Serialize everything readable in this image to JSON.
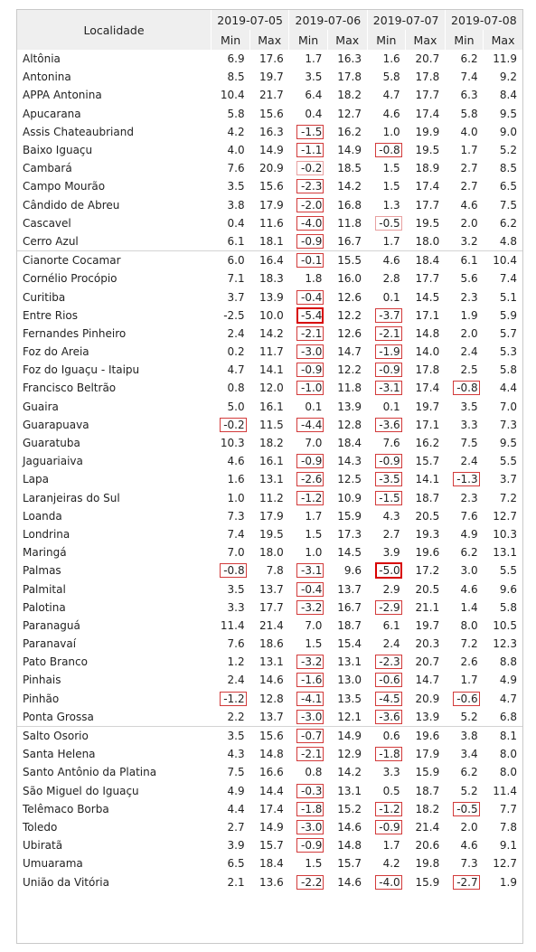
{
  "table": {
    "header": {
      "locality_label": "Localidade",
      "dates": [
        "2019-07-05",
        "2019-07-06",
        "2019-07-07",
        "2019-07-08"
      ],
      "min_label": "Min",
      "max_label": "Max"
    },
    "rows": [
      {
        "name": "Altônia",
        "vals": [
          "6.9",
          "17.6",
          "1.7",
          "16.3",
          "1.6",
          "20.7",
          "6.2",
          "11.9"
        ],
        "marks": [
          "",
          "",
          "",
          "",
          "",
          "",
          "",
          ""
        ]
      },
      {
        "name": "Antonina",
        "vals": [
          "8.5",
          "19.7",
          "3.5",
          "17.8",
          "5.8",
          "17.8",
          "7.4",
          "9.2"
        ],
        "marks": [
          "",
          "",
          "",
          "",
          "",
          "",
          "",
          ""
        ]
      },
      {
        "name": "APPA Antonina",
        "vals": [
          "10.4",
          "21.7",
          "6.4",
          "18.2",
          "4.7",
          "17.7",
          "6.3",
          "8.4"
        ],
        "marks": [
          "",
          "",
          "",
          "",
          "",
          "",
          "",
          ""
        ]
      },
      {
        "name": "Apucarana",
        "vals": [
          "5.8",
          "15.6",
          "0.4",
          "12.7",
          "4.6",
          "17.4",
          "5.8",
          "9.5"
        ],
        "marks": [
          "",
          "",
          "",
          "",
          "",
          "",
          "",
          ""
        ]
      },
      {
        "name": "Assis Chateaubriand",
        "vals": [
          "4.2",
          "16.3",
          "-1.5",
          "16.2",
          "1.0",
          "19.9",
          "4.0",
          "9.0"
        ],
        "marks": [
          "",
          "",
          "m",
          "",
          "",
          "",
          "",
          ""
        ]
      },
      {
        "name": "Baixo Iguaçu",
        "vals": [
          "4.0",
          "14.9",
          "-1.1",
          "14.9",
          "-0.8",
          "19.5",
          "1.7",
          "5.2"
        ],
        "marks": [
          "",
          "",
          "m",
          "",
          "m",
          "",
          "",
          ""
        ]
      },
      {
        "name": "Cambará",
        "vals": [
          "7.6",
          "20.9",
          "-0.2",
          "18.5",
          "1.5",
          "18.9",
          "2.7",
          "8.5"
        ],
        "marks": [
          "",
          "",
          "l",
          "",
          "",
          "",
          "",
          ""
        ]
      },
      {
        "name": "Campo Mourão",
        "vals": [
          "3.5",
          "15.6",
          "-2.3",
          "14.2",
          "1.5",
          "17.4",
          "2.7",
          "6.5"
        ],
        "marks": [
          "",
          "",
          "m",
          "",
          "",
          "",
          "",
          ""
        ]
      },
      {
        "name": "Cândido de Abreu",
        "vals": [
          "3.8",
          "17.9",
          "-2.0",
          "16.8",
          "1.3",
          "17.7",
          "4.6",
          "7.5"
        ],
        "marks": [
          "",
          "",
          "m",
          "",
          "",
          "",
          "",
          ""
        ]
      },
      {
        "name": "Cascavel",
        "vals": [
          "0.4",
          "11.6",
          "-4.0",
          "11.8",
          "-0.5",
          "19.5",
          "2.0",
          "6.2"
        ],
        "marks": [
          "",
          "",
          "m",
          "",
          "l",
          "",
          "",
          ""
        ]
      },
      {
        "name": "Cerro Azul",
        "vals": [
          "6.1",
          "18.1",
          "-0.9",
          "16.7",
          "1.7",
          "18.0",
          "3.2",
          "4.8"
        ],
        "marks": [
          "",
          "",
          "m",
          "",
          "",
          "",
          "",
          ""
        ]
      },
      {
        "name": "Cianorte Cocamar",
        "vals": [
          "6.0",
          "16.4",
          "-0.1",
          "15.5",
          "4.6",
          "18.4",
          "6.1",
          "10.4"
        ],
        "marks": [
          "",
          "",
          "m",
          "",
          "",
          "",
          "",
          ""
        ]
      },
      {
        "name": "Cornélio Procópio",
        "vals": [
          "7.1",
          "18.3",
          "1.8",
          "16.0",
          "2.8",
          "17.7",
          "5.6",
          "7.4"
        ],
        "marks": [
          "",
          "",
          "",
          "",
          "",
          "",
          "",
          ""
        ]
      },
      {
        "name": "Curitiba",
        "vals": [
          "3.7",
          "13.9",
          "-0.4",
          "12.6",
          "0.1",
          "14.5",
          "2.3",
          "5.1"
        ],
        "marks": [
          "",
          "",
          "m",
          "",
          "",
          "",
          "",
          ""
        ]
      },
      {
        "name": "Entre Rios",
        "vals": [
          "-2.5",
          "10.0",
          "-5.4",
          "12.2",
          "-3.7",
          "17.1",
          "1.9",
          "5.9"
        ],
        "marks": [
          "",
          "",
          "s",
          "",
          "m",
          "",
          "",
          ""
        ]
      },
      {
        "name": "Fernandes Pinheiro",
        "vals": [
          "2.4",
          "14.2",
          "-2.1",
          "12.6",
          "-2.1",
          "14.8",
          "2.0",
          "5.7"
        ],
        "marks": [
          "",
          "",
          "m",
          "",
          "m",
          "",
          "",
          ""
        ]
      },
      {
        "name": "Foz do Areia",
        "vals": [
          "0.2",
          "11.7",
          "-3.0",
          "14.7",
          "-1.9",
          "14.0",
          "2.4",
          "5.3"
        ],
        "marks": [
          "",
          "",
          "m",
          "",
          "m",
          "",
          "",
          ""
        ]
      },
      {
        "name": "Foz do Iguaçu - Itaipu",
        "vals": [
          "4.7",
          "14.1",
          "-0.9",
          "12.2",
          "-0.9",
          "17.8",
          "2.5",
          "5.8"
        ],
        "marks": [
          "",
          "",
          "m",
          "",
          "m",
          "",
          "",
          ""
        ]
      },
      {
        "name": "Francisco Beltrão",
        "vals": [
          "0.8",
          "12.0",
          "-1.0",
          "11.8",
          "-3.1",
          "17.4",
          "-0.8",
          "4.4"
        ],
        "marks": [
          "",
          "",
          "m",
          "",
          "m",
          "",
          "m",
          ""
        ]
      },
      {
        "name": "Guaira",
        "vals": [
          "5.0",
          "16.1",
          "0.1",
          "13.9",
          "0.1",
          "19.7",
          "3.5",
          "7.0"
        ],
        "marks": [
          "",
          "",
          "",
          "",
          "",
          "",
          "",
          ""
        ]
      },
      {
        "name": "Guarapuava",
        "vals": [
          "-0.2",
          "11.5",
          "-4.4",
          "12.8",
          "-3.6",
          "17.1",
          "3.3",
          "7.3"
        ],
        "marks": [
          "m",
          "",
          "m",
          "",
          "m",
          "",
          "",
          ""
        ]
      },
      {
        "name": "Guaratuba",
        "vals": [
          "10.3",
          "18.2",
          "7.0",
          "18.4",
          "7.6",
          "16.2",
          "7.5",
          "9.5"
        ],
        "marks": [
          "",
          "",
          "",
          "",
          "",
          "",
          "",
          ""
        ]
      },
      {
        "name": "Jaguariaiva",
        "vals": [
          "4.6",
          "16.1",
          "-0.9",
          "14.3",
          "-0.9",
          "15.7",
          "2.4",
          "5.5"
        ],
        "marks": [
          "",
          "",
          "m",
          "",
          "m",
          "",
          "",
          ""
        ]
      },
      {
        "name": "Lapa",
        "vals": [
          "1.6",
          "13.1",
          "-2.6",
          "12.5",
          "-3.5",
          "14.1",
          "-1.3",
          "3.7"
        ],
        "marks": [
          "",
          "",
          "m",
          "",
          "m",
          "",
          "m",
          ""
        ]
      },
      {
        "name": "Laranjeiras do Sul",
        "vals": [
          "1.0",
          "11.2",
          "-1.2",
          "10.9",
          "-1.5",
          "18.7",
          "2.3",
          "7.2"
        ],
        "marks": [
          "",
          "",
          "m",
          "",
          "m",
          "",
          "",
          ""
        ]
      },
      {
        "name": "Loanda",
        "vals": [
          "7.3",
          "17.9",
          "1.7",
          "15.9",
          "4.3",
          "20.5",
          "7.6",
          "12.7"
        ],
        "marks": [
          "",
          "",
          "",
          "",
          "",
          "",
          "",
          ""
        ]
      },
      {
        "name": "Londrina",
        "vals": [
          "7.4",
          "19.5",
          "1.5",
          "17.3",
          "2.7",
          "19.3",
          "4.9",
          "10.3"
        ],
        "marks": [
          "",
          "",
          "",
          "",
          "",
          "",
          "",
          ""
        ]
      },
      {
        "name": "Maringá",
        "vals": [
          "7.0",
          "18.0",
          "1.0",
          "14.5",
          "3.9",
          "19.6",
          "6.2",
          "13.1"
        ],
        "marks": [
          "",
          "",
          "",
          "",
          "",
          "",
          "",
          ""
        ]
      },
      {
        "name": "Palmas",
        "vals": [
          "-0.8",
          "7.8",
          "-3.1",
          "9.6",
          "-5.0",
          "17.2",
          "3.0",
          "5.5"
        ],
        "marks": [
          "m",
          "",
          "m",
          "",
          "s",
          "",
          "",
          ""
        ]
      },
      {
        "name": "Palmital",
        "vals": [
          "3.5",
          "13.7",
          "-0.4",
          "13.7",
          "2.9",
          "20.5",
          "4.6",
          "9.6"
        ],
        "marks": [
          "",
          "",
          "m",
          "",
          "",
          "",
          "",
          ""
        ]
      },
      {
        "name": "Palotina",
        "vals": [
          "3.3",
          "17.7",
          "-3.2",
          "16.7",
          "-2.9",
          "21.1",
          "1.4",
          "5.8"
        ],
        "marks": [
          "",
          "",
          "m",
          "",
          "m",
          "",
          "",
          ""
        ]
      },
      {
        "name": "Paranaguá",
        "vals": [
          "11.4",
          "21.4",
          "7.0",
          "18.7",
          "6.1",
          "19.7",
          "8.0",
          "10.5"
        ],
        "marks": [
          "",
          "",
          "",
          "",
          "",
          "",
          "",
          ""
        ]
      },
      {
        "name": "Paranavaí",
        "vals": [
          "7.6",
          "18.6",
          "1.5",
          "15.4",
          "2.4",
          "20.3",
          "7.2",
          "12.3"
        ],
        "marks": [
          "",
          "",
          "",
          "",
          "",
          "",
          "",
          ""
        ]
      },
      {
        "name": "Pato Branco",
        "vals": [
          "1.2",
          "13.1",
          "-3.2",
          "13.1",
          "-2.3",
          "20.7",
          "2.6",
          "8.8"
        ],
        "marks": [
          "",
          "",
          "m",
          "",
          "m",
          "",
          "",
          ""
        ]
      },
      {
        "name": "Pinhais",
        "vals": [
          "2.4",
          "14.6",
          "-1.6",
          "13.0",
          "-0.6",
          "14.7",
          "1.7",
          "4.9"
        ],
        "marks": [
          "",
          "",
          "m",
          "",
          "m",
          "",
          "",
          ""
        ]
      },
      {
        "name": "Pinhão",
        "vals": [
          "-1.2",
          "12.8",
          "-4.1",
          "13.5",
          "-4.5",
          "20.9",
          "-0.6",
          "4.7"
        ],
        "marks": [
          "m",
          "",
          "m",
          "",
          "m",
          "",
          "m",
          ""
        ]
      },
      {
        "name": "Ponta Grossa",
        "vals": [
          "2.2",
          "13.7",
          "-3.0",
          "12.1",
          "-3.6",
          "13.9",
          "5.2",
          "6.8"
        ],
        "marks": [
          "",
          "",
          "m",
          "",
          "m",
          "",
          "",
          ""
        ]
      },
      {
        "name": "Salto Osorio",
        "vals": [
          "3.5",
          "15.6",
          "-0.7",
          "14.9",
          "0.6",
          "19.6",
          "3.8",
          "8.1"
        ],
        "marks": [
          "",
          "",
          "m",
          "",
          "",
          "",
          "",
          ""
        ]
      },
      {
        "name": "Santa Helena",
        "vals": [
          "4.3",
          "14.8",
          "-2.1",
          "12.9",
          "-1.8",
          "17.9",
          "3.4",
          "8.0"
        ],
        "marks": [
          "",
          "",
          "m",
          "",
          "m",
          "",
          "",
          ""
        ]
      },
      {
        "name": "Santo Antônio da Platina",
        "vals": [
          "7.5",
          "16.6",
          "0.8",
          "14.2",
          "3.3",
          "15.9",
          "6.2",
          "8.0"
        ],
        "marks": [
          "",
          "",
          "",
          "",
          "",
          "",
          "",
          ""
        ]
      },
      {
        "name": "São Miguel do Iguaçu",
        "vals": [
          "4.9",
          "14.4",
          "-0.3",
          "13.1",
          "0.5",
          "18.7",
          "5.2",
          "11.4"
        ],
        "marks": [
          "",
          "",
          "m",
          "",
          "",
          "",
          "",
          ""
        ]
      },
      {
        "name": "Telêmaco Borba",
        "vals": [
          "4.4",
          "17.4",
          "-1.8",
          "15.2",
          "-1.2",
          "18.2",
          "-0.5",
          "7.7"
        ],
        "marks": [
          "",
          "",
          "m",
          "",
          "m",
          "",
          "m",
          ""
        ]
      },
      {
        "name": "Toledo",
        "vals": [
          "2.7",
          "14.9",
          "-3.0",
          "14.6",
          "-0.9",
          "21.4",
          "2.0",
          "7.8"
        ],
        "marks": [
          "",
          "",
          "m",
          "",
          "m",
          "",
          "",
          ""
        ]
      },
      {
        "name": "Ubiratã",
        "vals": [
          "3.9",
          "15.7",
          "-0.9",
          "14.8",
          "1.7",
          "20.6",
          "4.6",
          "9.1"
        ],
        "marks": [
          "",
          "",
          "m",
          "",
          "",
          "",
          "",
          ""
        ]
      },
      {
        "name": "Umuarama",
        "vals": [
          "6.5",
          "18.4",
          "1.5",
          "15.7",
          "4.2",
          "19.8",
          "7.3",
          "12.7"
        ],
        "marks": [
          "",
          "",
          "",
          "",
          "",
          "",
          "",
          ""
        ]
      },
      {
        "name": "União da Vitória",
        "vals": [
          "2.1",
          "13.6",
          "-2.2",
          "14.6",
          "-4.0",
          "15.9",
          "-2.7",
          "1.9"
        ],
        "marks": [
          "",
          "",
          "m",
          "",
          "m",
          "",
          "m",
          ""
        ]
      }
    ]
  },
  "colors": {
    "header_bg": "#efefef",
    "highlight_light": "#e8a0a0",
    "highlight_medium": "#d23a3a",
    "highlight_strong": "#d80000"
  }
}
